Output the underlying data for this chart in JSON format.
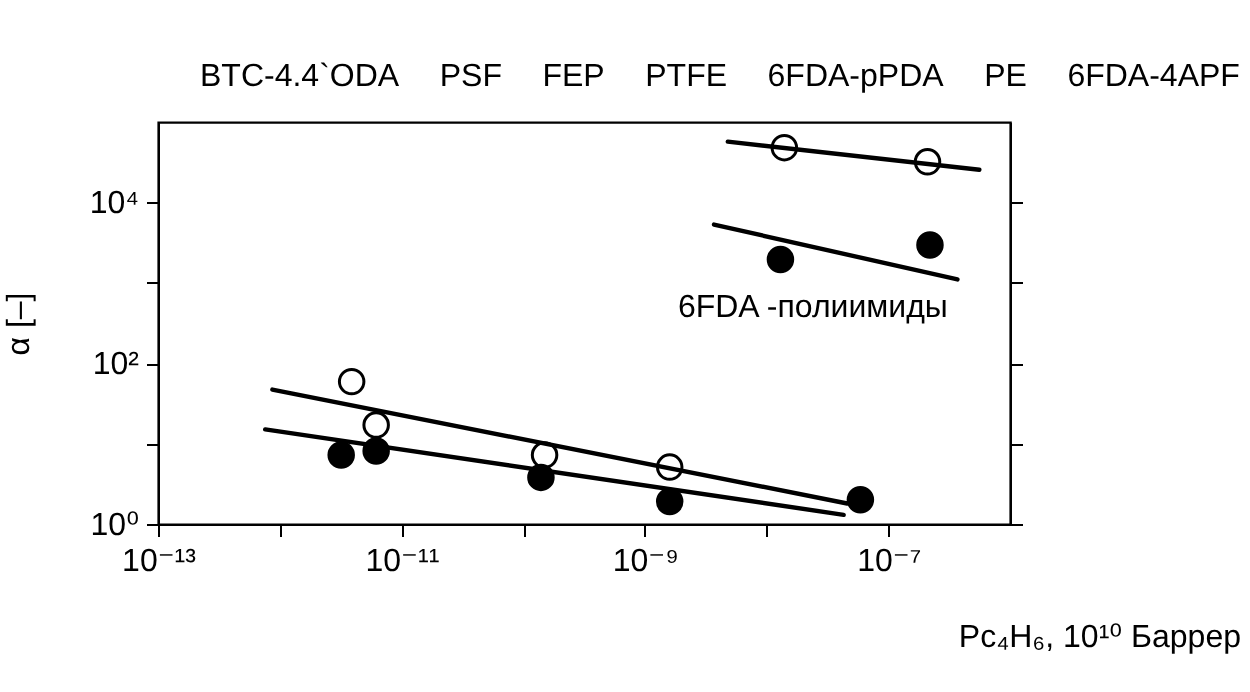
{
  "chart_data": {
    "type": "scatter",
    "xlabel": "Pc₄H₆, 10¹⁰ Баррер",
    "ylabel": "α [–]",
    "log": "xy",
    "marker": "circle",
    "grid": false,
    "xlim": [
      1e-13,
      1e-06
    ],
    "ylim": [
      1,
      100000
    ],
    "xticks": [
      {
        "value": 1e-13,
        "label": "10⁻¹³"
      },
      {
        "value": 1e-12,
        "label": null
      },
      {
        "value": 1e-11,
        "label": "10⁻¹¹"
      },
      {
        "value": 1e-10,
        "label": null
      },
      {
        "value": 1e-09,
        "label": "10⁻⁹"
      },
      {
        "value": 1e-08,
        "label": null
      },
      {
        "value": 1e-07,
        "label": "10⁻⁷"
      }
    ],
    "yticks": [
      {
        "value": 1,
        "label": "10⁰"
      },
      {
        "value": 10,
        "label": null
      },
      {
        "value": 100,
        "label": "10²"
      },
      {
        "value": 1000,
        "label": null
      },
      {
        "value": 10000,
        "label": "10⁴"
      }
    ],
    "annotations": [
      "BTC-4.4`ODA",
      "PSF",
      "FEP",
      "PTFE",
      "6FDA-pPDA",
      "PE",
      "6FDA-4APF",
      {
        "text": "6FDA -полиимиды",
        "x": 2.4e-08,
        "y": 2800
      }
    ],
    "series": [
      {
        "color": "#ffffff",
        "x": [
          3.9e-12,
          6.2e-12,
          1.5e-10,
          1.6e-09,
          1.4e-08,
          2.1e-07
        ],
        "values": [
          59,
          17,
          7.2,
          5.1,
          48000,
          32000
        ]
      },
      {
        "color": "#000000",
        "x": [
          3.2e-12,
          6.2e-12,
          1.4e-10,
          1.6e-09,
          5.9e-08,
          1.3e-08,
          2.2e-07
        ],
        "values": [
          7.2,
          8.1,
          3.8,
          1.9,
          2.0,
          1950,
          2950
        ]
      },
      {
        "type": "line",
        "marker": "none",
        "color": "#000000",
        "x": [
          8.7e-13,
          4.6e-08
        ],
        "values": [
          47,
          1.8
        ]
      },
      {
        "type": "line",
        "marker": "none",
        "color": "#000000",
        "x": [
          7.6e-13,
          4.3e-08
        ],
        "values": [
          15,
          1.3
        ]
      },
      {
        "type": "line",
        "marker": "none",
        "color": "#000000",
        "x": [
          4.8e-09,
          5.6e-07
        ],
        "values": [
          57000,
          25500
        ]
      },
      {
        "type": "line",
        "marker": "none",
        "color": "#000000",
        "x": [
          3.7e-09,
          3.7e-07
        ],
        "values": [
          5300,
          1100
        ]
      }
    ]
  }
}
